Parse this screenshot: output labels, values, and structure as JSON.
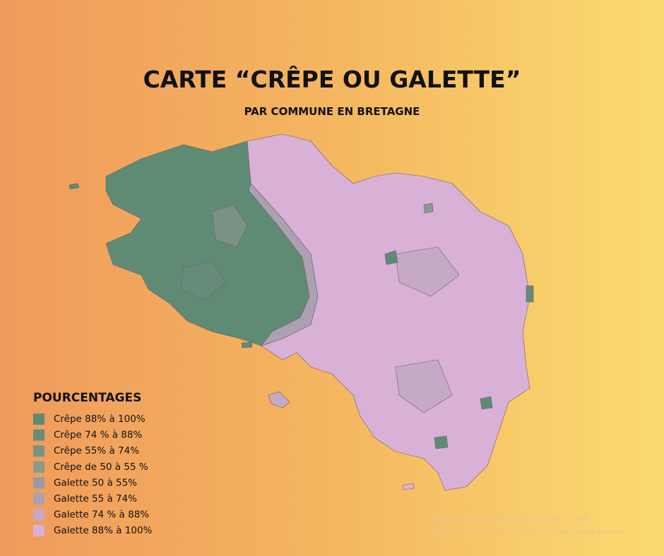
{
  "header": {
    "title": "CARTE “CRÊPE OU GALETTE”",
    "subtitle": "PAR COMMUNE EN BRETAGNE"
  },
  "legend": {
    "title": "POURCENTAGES",
    "items": [
      {
        "label": "Crêpe 88% à 100%",
        "color": "#5f8b74"
      },
      {
        "label": "Crêpe 74 % à 88%",
        "color": "#668c79"
      },
      {
        "label": "Crêpe 55% à 74%",
        "color": "#7a9283"
      },
      {
        "label": "Crêpe de 50 à 55 %",
        "color": "#8c9890"
      },
      {
        "label": "Galette 50 à 55%",
        "color": "#979aa2"
      },
      {
        "label": "Galette 55 à 74%",
        "color": "#aba1b3"
      },
      {
        "label": "Galette 74 % à 88%",
        "color": "#c6a9c6"
      },
      {
        "label": "Galette 88% à 100%",
        "color": "#dab1d6"
      }
    ]
  },
  "credits": [
    "Carte réalisée par Sébastien Garnier - 2026",
    "Droits réservés à Simon Cojean et Gwenvaël Balnois"
  ]
}
